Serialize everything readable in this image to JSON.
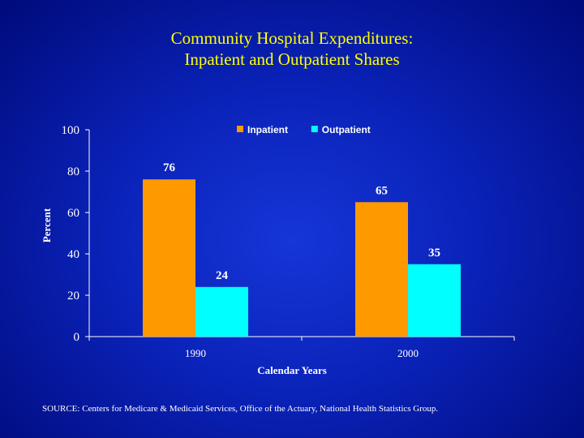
{
  "title": {
    "line1": "Community Hospital Expenditures:",
    "line2": "Inpatient and Outpatient Shares"
  },
  "source_note": "SOURCE: Centers for Medicare & Medicaid Services, Office of the Actuary, National Health Statistics Group.",
  "colors": {
    "inpatient": "#ff9900",
    "outpatient": "#00ffff",
    "axis": "#ffffff",
    "title": "#ffff00"
  },
  "chart_data": {
    "type": "bar",
    "title": "Community Hospital Expenditures: Inpatient and Outpatient Shares",
    "xlabel": "Calendar Years",
    "ylabel": "Percent",
    "categories": [
      "1990",
      "2000"
    ],
    "series": [
      {
        "name": "Inpatient",
        "values": [
          76,
          65
        ],
        "color": "#ff9900"
      },
      {
        "name": "Outpatient",
        "values": [
          24,
          35
        ],
        "color": "#00ffff"
      }
    ],
    "ylim": [
      0,
      100
    ],
    "yticks": [
      0,
      20,
      40,
      60,
      80,
      100
    ],
    "data_labels": true,
    "legend": "top",
    "grid": false
  }
}
